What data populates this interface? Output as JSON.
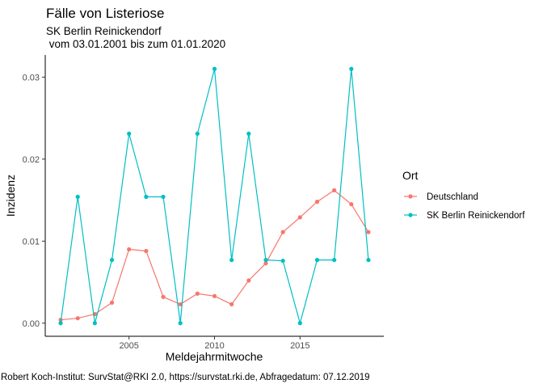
{
  "chart_data": {
    "type": "line",
    "title": "Fälle von Listeriose",
    "subtitle_line1": "SK Berlin Reinickendorf",
    "subtitle_line2": " vom 03.01.2001 bis zum 01.01.2020",
    "xlabel": "Meldejahrmitwoche",
    "ylabel": "Inzidenz",
    "caption": "Robert Koch-Institut: SurvStat@RKI 2.0, https://survstat.rki.de, Abfragedatum: 07.12.2019",
    "xlim": [
      2000.1,
      2019.9
    ],
    "ylim": [
      -0.0016,
      0.0327
    ],
    "x_ticks": [
      2005,
      2010,
      2015
    ],
    "x_tick_labels": [
      "2005",
      "2010",
      "2015"
    ],
    "y_ticks": [
      0.0,
      0.01,
      0.02,
      0.03
    ],
    "y_tick_labels": [
      "0.00",
      "0.01",
      "0.02",
      "0.03"
    ],
    "grid": false,
    "legend_title": "Ort",
    "legend_position": "right",
    "x": [
      2001,
      2002,
      2003,
      2004,
      2005,
      2006,
      2007,
      2008,
      2009,
      2010,
      2011,
      2012,
      2013,
      2014,
      2015,
      2016,
      2017,
      2018,
      2019
    ],
    "series": [
      {
        "name": "Deutschland",
        "color": "#F8766D",
        "values": [
          0.0004,
          0.0006,
          0.0011,
          0.0025,
          0.009,
          0.0088,
          0.0032,
          0.0023,
          0.0036,
          0.0033,
          0.0023,
          0.0052,
          0.0073,
          0.0111,
          0.0129,
          0.0148,
          0.0162,
          0.0145,
          0.0111
        ]
      },
      {
        "name": "SK Berlin Reinickendorf",
        "color": "#00BFC4",
        "values": [
          0.0,
          0.0154,
          0.0,
          0.0077,
          0.0231,
          0.0154,
          0.0154,
          0.0,
          0.0231,
          0.031,
          0.0077,
          0.0231,
          0.0077,
          0.0076,
          0.0,
          0.0077,
          0.0077,
          0.031,
          0.0077
        ]
      }
    ]
  }
}
